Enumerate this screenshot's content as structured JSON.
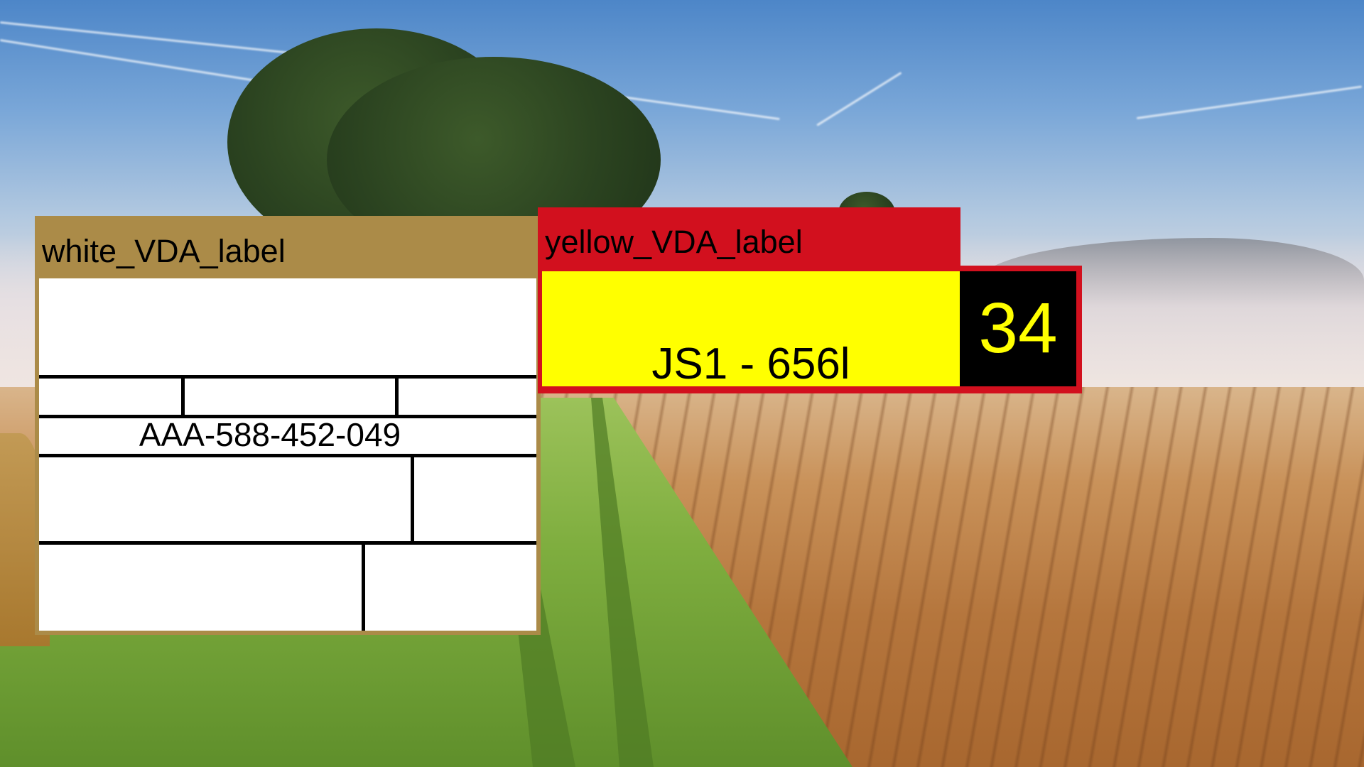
{
  "white_label": {
    "title": "white_VDA_label",
    "code": "AAA-588-452-049",
    "colors": {
      "border": "#ab8b48",
      "body": "#ffffff"
    }
  },
  "yellow_label": {
    "title": "yellow_VDA_label",
    "code": "JS1 - 656l",
    "number": "34",
    "colors": {
      "header": "#d2101e",
      "field": "#ffff00",
      "number_box": "#000000",
      "number_text": "#ffff00"
    }
  }
}
